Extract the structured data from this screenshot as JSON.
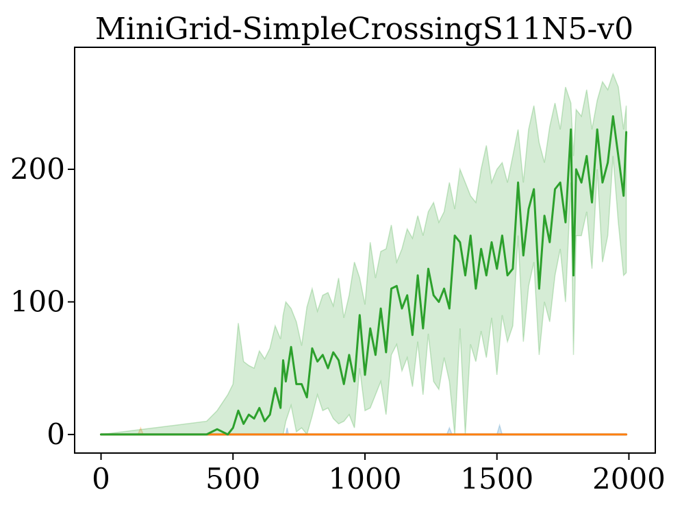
{
  "chart_data": {
    "type": "line",
    "title": "MiniGrid-SimpleCrossingS11N5-v0",
    "xlabel": "",
    "ylabel": "",
    "xlim": [
      -100,
      2100
    ],
    "ylim": [
      -14,
      292
    ],
    "grid": false,
    "legend": "none",
    "x_ticks": [
      {
        "value": 0,
        "label": "0"
      },
      {
        "value": 500,
        "label": "500"
      },
      {
        "value": 1000,
        "label": "1000"
      },
      {
        "value": 1500,
        "label": "1500"
      },
      {
        "value": 2000,
        "label": "2000"
      }
    ],
    "y_ticks": [
      {
        "value": 0,
        "label": "0"
      },
      {
        "value": 100,
        "label": "100"
      },
      {
        "value": 200,
        "label": "200"
      }
    ],
    "series": [
      {
        "color": "#1f77b4",
        "x": [
          0,
          700,
          705,
          710,
          1310,
          1320,
          1330,
          1500,
          1510,
          1520,
          1990
        ],
        "values": [
          0,
          0,
          0,
          0,
          0,
          0,
          0,
          0,
          0,
          0,
          0
        ],
        "band_upper": [
          0,
          0,
          5,
          0,
          0,
          5,
          0,
          0,
          7,
          0,
          0
        ],
        "band_lower": [
          0,
          0,
          0,
          0,
          0,
          0,
          0,
          0,
          0,
          0,
          0
        ]
      },
      {
        "color": "#ff7f0e",
        "x": [
          0,
          140,
          150,
          160,
          1990
        ],
        "values": [
          0,
          0,
          0,
          0,
          0
        ],
        "band_upper": [
          0,
          0,
          5,
          0,
          0
        ],
        "band_lower": [
          0,
          0,
          0,
          0,
          0
        ]
      },
      {
        "color": "#2ca02c",
        "x": [
          0,
          400,
          440,
          480,
          500,
          520,
          540,
          560,
          580,
          600,
          620,
          640,
          660,
          680,
          690,
          700,
          720,
          740,
          760,
          780,
          800,
          820,
          840,
          860,
          880,
          900,
          920,
          940,
          960,
          980,
          1000,
          1020,
          1040,
          1060,
          1080,
          1100,
          1120,
          1140,
          1160,
          1180,
          1200,
          1220,
          1240,
          1260,
          1280,
          1300,
          1320,
          1340,
          1360,
          1380,
          1400,
          1420,
          1440,
          1460,
          1480,
          1500,
          1520,
          1540,
          1560,
          1580,
          1600,
          1620,
          1640,
          1660,
          1680,
          1700,
          1720,
          1740,
          1760,
          1780,
          1790,
          1800,
          1820,
          1840,
          1860,
          1880,
          1900,
          1920,
          1940,
          1960,
          1980,
          1990
        ],
        "values": [
          0,
          0,
          4,
          0,
          5,
          18,
          8,
          15,
          12,
          20,
          10,
          15,
          35,
          20,
          56,
          40,
          66,
          38,
          38,
          28,
          65,
          55,
          60,
          50,
          62,
          56,
          38,
          60,
          40,
          90,
          45,
          80,
          60,
          95,
          62,
          110,
          112,
          95,
          105,
          75,
          120,
          80,
          125,
          105,
          100,
          110,
          95,
          150,
          145,
          120,
          150,
          110,
          140,
          120,
          145,
          125,
          150,
          120,
          125,
          190,
          135,
          170,
          185,
          110,
          165,
          145,
          185,
          190,
          160,
          230,
          120,
          200,
          190,
          210,
          175,
          230,
          190,
          205,
          240,
          210,
          180,
          228
        ],
        "band_upper": [
          0,
          10,
          18,
          30,
          38,
          84,
          55,
          52,
          50,
          63,
          57,
          65,
          82,
          72,
          90,
          100,
          95,
          85,
          67,
          96,
          110,
          93,
          105,
          107,
          97,
          118,
          88,
          105,
          130,
          118,
          98,
          145,
          118,
          138,
          140,
          158,
          130,
          140,
          155,
          148,
          165,
          150,
          168,
          175,
          160,
          168,
          190,
          170,
          200,
          190,
          180,
          175,
          200,
          218,
          190,
          200,
          205,
          190,
          210,
          230,
          190,
          230,
          248,
          220,
          205,
          232,
          250,
          230,
          262,
          250,
          210,
          245,
          240,
          260,
          230,
          252,
          266,
          260,
          272,
          262,
          230,
          248
        ],
        "band_lower": [
          0,
          0,
          0,
          0,
          0,
          0,
          0,
          0,
          0,
          0,
          0,
          0,
          0,
          0,
          0,
          10,
          22,
          2,
          5,
          0,
          14,
          30,
          18,
          20,
          12,
          8,
          10,
          15,
          5,
          50,
          18,
          20,
          30,
          40,
          15,
          60,
          68,
          48,
          58,
          36,
          70,
          30,
          76,
          40,
          34,
          58,
          40,
          0,
          80,
          0,
          68,
          55,
          78,
          58,
          88,
          45,
          90,
          70,
          82,
          150,
          70,
          112,
          130,
          60,
          100,
          85,
          120,
          140,
          100,
          190,
          60,
          150,
          150,
          168,
          125,
          200,
          130,
          150,
          210,
          160,
          120,
          122
        ]
      }
    ]
  }
}
